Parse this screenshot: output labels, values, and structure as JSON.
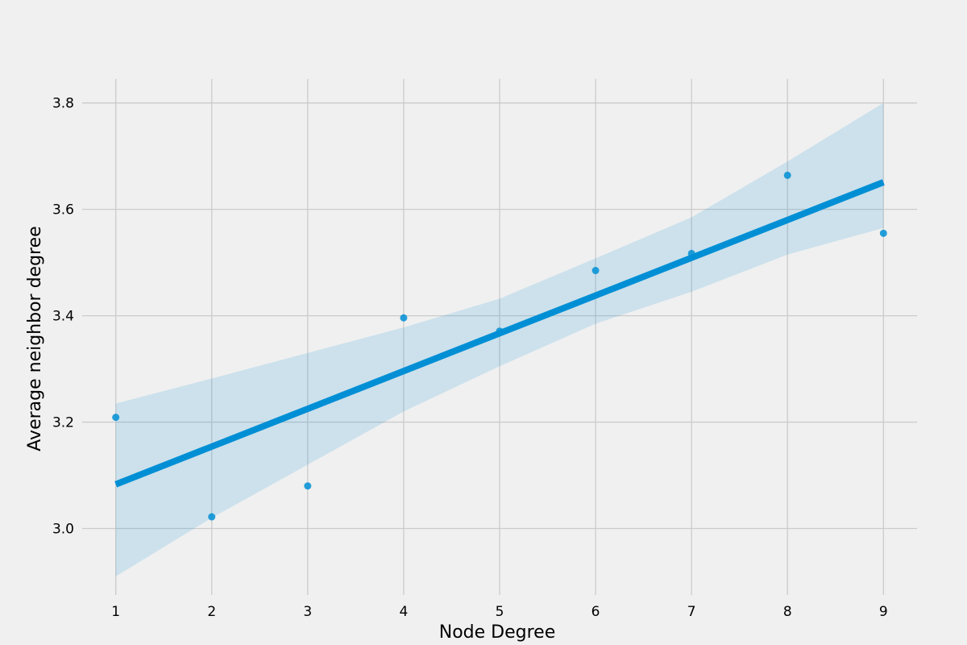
{
  "chart_data": {
    "type": "scatter",
    "xlabel": "Node Degree",
    "ylabel": "Average neighbor degree",
    "x_ticks": [
      "1",
      "2",
      "3",
      "4",
      "5",
      "6",
      "7",
      "8",
      "9"
    ],
    "y_ticks": [
      "3.0",
      "3.2",
      "3.4",
      "3.6",
      "3.8"
    ],
    "xlim": [
      0.65,
      9.35
    ],
    "ylim": [
      2.875,
      3.845
    ],
    "grid": true,
    "legend": "none",
    "series": [
      {
        "kind": "points",
        "x": [
          1,
          2,
          3,
          4,
          5,
          6,
          7,
          8,
          9
        ],
        "y": [
          3.209,
          3.022,
          3.08,
          3.396,
          3.371,
          3.485,
          3.517,
          3.664,
          3.555
        ]
      }
    ],
    "regression": {
      "x": [
        1,
        9
      ],
      "y": [
        3.083,
        3.651
      ]
    },
    "confidence_band": {
      "x": [
        1,
        2,
        3,
        4,
        5,
        6,
        7,
        8,
        9
      ],
      "lower": [
        2.91,
        3.02,
        3.12,
        3.22,
        3.305,
        3.385,
        3.445,
        3.515,
        3.565
      ],
      "upper": [
        3.235,
        3.282,
        3.33,
        3.378,
        3.432,
        3.508,
        3.585,
        3.69,
        3.8
      ]
    },
    "colors": {
      "points": "#008fd5",
      "line": "#008fd5",
      "band": "#008fd5",
      "grid": "#cbcbcb",
      "background": "#f0f0f0"
    }
  }
}
